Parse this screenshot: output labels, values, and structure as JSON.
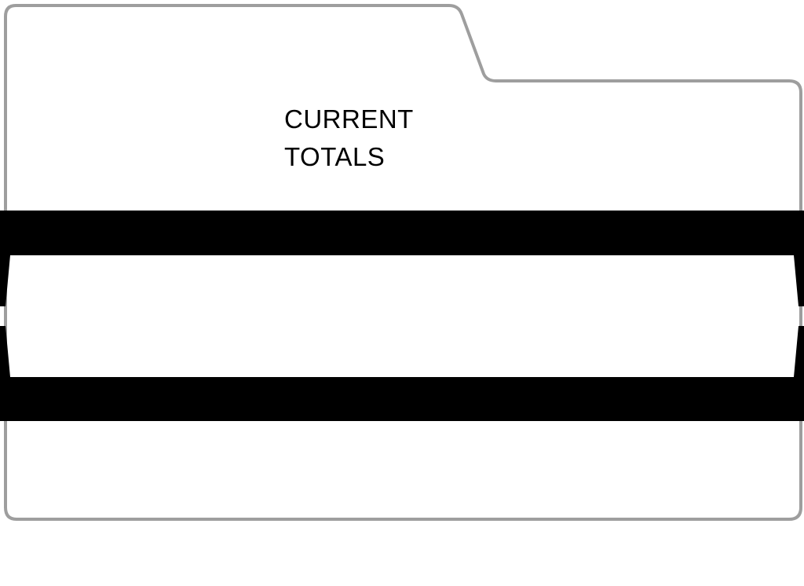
{
  "folder": {
    "title_lines": [
      "CURRENT",
      "TOTALS"
    ],
    "outline_color": "#9e9e9e",
    "band_color": "#000000",
    "background_color": "#ffffff"
  }
}
